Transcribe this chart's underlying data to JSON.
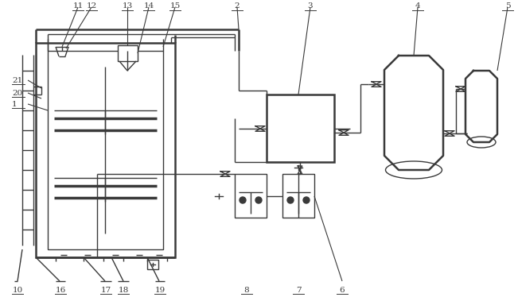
{
  "bg_color": "#ffffff",
  "line_color": "#3a3a3a",
  "lw": 1.0,
  "tlw": 1.8,
  "figsize": [
    6.51,
    3.79
  ],
  "dpi": 100
}
